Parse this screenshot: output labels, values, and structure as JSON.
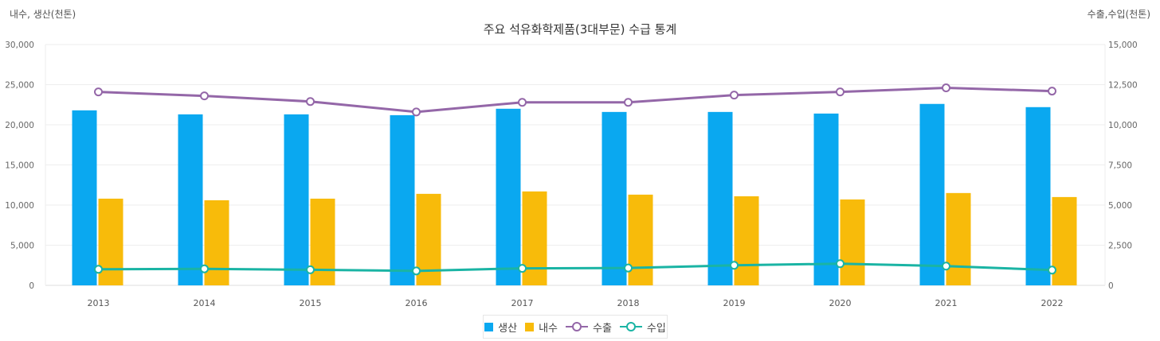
{
  "chart_data": {
    "type": "bar",
    "title": "주요 석유화학제품(3대부문) 수급 통계",
    "left_axis_label": "내수, 생산(천톤)",
    "right_axis_label": "수출,수입(천톤)",
    "categories": [
      "2013",
      "2014",
      "2015",
      "2016",
      "2017",
      "2018",
      "2019",
      "2020",
      "2021",
      "2022"
    ],
    "left_ylim": [
      0,
      30000
    ],
    "right_ylim": [
      0,
      15000
    ],
    "left_ticks": [
      "0",
      "5,000",
      "10,000",
      "15,000",
      "20,000",
      "25,000",
      "30,000"
    ],
    "right_ticks": [
      "0",
      "2,500",
      "5,000",
      "7,500",
      "10,000",
      "12,500",
      "15,000"
    ],
    "series": [
      {
        "name": "생산",
        "kind": "bar",
        "axis": "left",
        "color": "#0aa8f0",
        "values": [
          21800,
          21300,
          21300,
          21200,
          22000,
          21600,
          21600,
          21400,
          22600,
          22200
        ]
      },
      {
        "name": "내수",
        "kind": "bar",
        "axis": "left",
        "color": "#f8bb0a",
        "values": [
          10800,
          10600,
          10800,
          11400,
          11700,
          11300,
          11100,
          10700,
          11500,
          11000
        ]
      },
      {
        "name": "수출",
        "kind": "line",
        "axis": "right",
        "color": "#9467a8",
        "values": [
          12050,
          11800,
          11450,
          10800,
          11400,
          11400,
          11850,
          12050,
          12300,
          12100
        ]
      },
      {
        "name": "수입",
        "kind": "line",
        "axis": "right",
        "color": "#1ab4a4",
        "values": [
          1000,
          1030,
          970,
          900,
          1060,
          1080,
          1250,
          1350,
          1200,
          950
        ]
      }
    ]
  }
}
